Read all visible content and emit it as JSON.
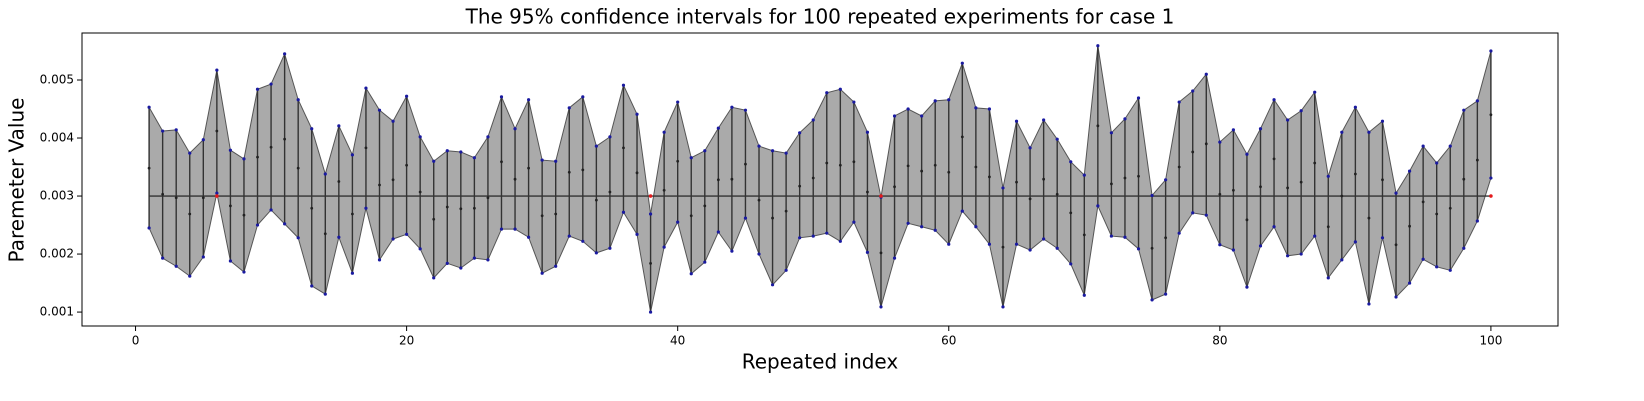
{
  "chart_data": {
    "type": "interval",
    "title": "The 95% confidence intervals for 100 repeated experiments for case 1",
    "x_label": "Repeated index",
    "y_label": "Paremeter Value",
    "x": [
      1,
      2,
      3,
      4,
      5,
      6,
      7,
      8,
      9,
      10,
      11,
      12,
      13,
      14,
      15,
      16,
      17,
      18,
      19,
      20,
      21,
      22,
      23,
      24,
      25,
      26,
      27,
      28,
      29,
      30,
      31,
      32,
      33,
      34,
      35,
      36,
      37,
      38,
      39,
      40,
      41,
      42,
      43,
      44,
      45,
      46,
      47,
      48,
      49,
      50,
      51,
      52,
      53,
      54,
      55,
      56,
      57,
      58,
      59,
      60,
      61,
      62,
      63,
      64,
      65,
      66,
      67,
      68,
      69,
      70,
      71,
      72,
      73,
      74,
      75,
      76,
      77,
      78,
      79,
      80,
      81,
      82,
      83,
      84,
      85,
      86,
      87,
      88,
      89,
      90,
      91,
      92,
      93,
      94,
      95,
      96,
      97,
      98,
      99,
      100
    ],
    "upper": [
      0.00453,
      0.00412,
      0.00414,
      0.00374,
      0.00397,
      0.00517,
      0.00379,
      0.00364,
      0.00484,
      0.00493,
      0.00545,
      0.00466,
      0.00416,
      0.00338,
      0.00421,
      0.00371,
      0.00486,
      0.00448,
      0.00429,
      0.00472,
      0.00402,
      0.0036,
      0.00378,
      0.00376,
      0.00366,
      0.00402,
      0.00471,
      0.00416,
      0.00466,
      0.00362,
      0.0036,
      0.00452,
      0.00471,
      0.00386,
      0.00402,
      0.00491,
      0.00441,
      0.00269,
      0.0041,
      0.00462,
      0.00366,
      0.00378,
      0.00417,
      0.00453,
      0.00448,
      0.00386,
      0.00378,
      0.00374,
      0.00409,
      0.00431,
      0.00478,
      0.00484,
      0.00462,
      0.0041,
      0.00298,
      0.00438,
      0.0045,
      0.00438,
      0.00464,
      0.00466,
      0.00529,
      0.00452,
      0.0045,
      0.00314,
      0.00429,
      0.00383,
      0.00431,
      0.00398,
      0.00359,
      0.00336,
      0.00559,
      0.00409,
      0.00433,
      0.00469,
      0.00301,
      0.00328,
      0.00462,
      0.00481,
      0.0051,
      0.00393,
      0.00414,
      0.00372,
      0.00416,
      0.00466,
      0.00431,
      0.00447,
      0.00479,
      0.00334,
      0.0041,
      0.00453,
      0.0041,
      0.00429,
      0.00305,
      0.00343,
      0.00386,
      0.00357,
      0.00386,
      0.00448,
      0.00464,
      0.0055
    ],
    "lower": [
      0.00245,
      0.00193,
      0.00179,
      0.00162,
      0.00195,
      0.00305,
      0.00188,
      0.00169,
      0.0025,
      0.00276,
      0.00252,
      0.00228,
      0.00145,
      0.00131,
      0.00229,
      0.00167,
      0.00279,
      0.0019,
      0.00226,
      0.00234,
      0.00209,
      0.00159,
      0.00184,
      0.00176,
      0.00193,
      0.0019,
      0.00243,
      0.00243,
      0.00229,
      0.00167,
      0.00179,
      0.00231,
      0.00222,
      0.00202,
      0.0021,
      0.00272,
      0.00234,
      0.001,
      0.00212,
      0.00255,
      0.00166,
      0.00186,
      0.00238,
      0.00205,
      0.00262,
      0.002,
      0.00147,
      0.00172,
      0.00228,
      0.00231,
      0.00236,
      0.00222,
      0.00255,
      0.00203,
      0.00109,
      0.00193,
      0.00253,
      0.00247,
      0.00241,
      0.00217,
      0.00274,
      0.00247,
      0.00217,
      0.00109,
      0.00217,
      0.00207,
      0.00226,
      0.0021,
      0.00183,
      0.00129,
      0.00283,
      0.00231,
      0.00229,
      0.00209,
      0.00121,
      0.00131,
      0.00236,
      0.00271,
      0.00267,
      0.00216,
      0.00207,
      0.00143,
      0.00214,
      0.00247,
      0.00197,
      0.002,
      0.00231,
      0.00159,
      0.0019,
      0.00221,
      0.00114,
      0.00228,
      0.00126,
      0.0015,
      0.00191,
      0.00178,
      0.00172,
      0.0021,
      0.00257,
      0.00331
    ],
    "mean": [
      0.00348,
      0.00303,
      0.00297,
      0.00269,
      0.00297,
      0.00412,
      0.00283,
      0.00267,
      0.00367,
      0.00384,
      0.00398,
      0.00348,
      0.00279,
      0.00235,
      0.00325,
      0.00269,
      0.00383,
      0.00319,
      0.00328,
      0.00353,
      0.00307,
      0.0026,
      0.00281,
      0.00278,
      0.00279,
      0.00297,
      0.00359,
      0.00329,
      0.00348,
      0.00266,
      0.00269,
      0.00341,
      0.00345,
      0.00293,
      0.00307,
      0.00383,
      0.0034,
      0.00184,
      0.0031,
      0.0036,
      0.00266,
      0.00283,
      0.00328,
      0.00329,
      0.00355,
      0.00293,
      0.00262,
      0.00274,
      0.00317,
      0.00331,
      0.00357,
      0.00353,
      0.00359,
      0.00307,
      0.00202,
      0.00316,
      0.00352,
      0.00343,
      0.00353,
      0.00341,
      0.00402,
      0.0035,
      0.00333,
      0.00212,
      0.00324,
      0.00295,
      0.00329,
      0.00303,
      0.00271,
      0.00233,
      0.00421,
      0.00321,
      0.00331,
      0.00334,
      0.0021,
      0.00228,
      0.0035,
      0.00376,
      0.0039,
      0.00303,
      0.0031,
      0.00259,
      0.00316,
      0.00364,
      0.00314,
      0.00324,
      0.00357,
      0.00247,
      0.003,
      0.00338,
      0.00262,
      0.00328,
      0.00216,
      0.00248,
      0.0029,
      0.00269,
      0.00279,
      0.00329,
      0.00362,
      0.0044
    ],
    "true_value": 0.003,
    "fill_color": "#aaaaaa",
    "bound_color": "#1a1aa0",
    "mean_color": "#222222",
    "miss_color": "#e41a1c",
    "xlim": [
      -3.95,
      104.95
    ],
    "ylim": [
      0.00076,
      0.00581
    ],
    "xticks": [
      0,
      20,
      40,
      60,
      80,
      100
    ],
    "yticks": [
      0.001,
      0.002,
      0.003,
      0.004,
      0.005
    ]
  }
}
